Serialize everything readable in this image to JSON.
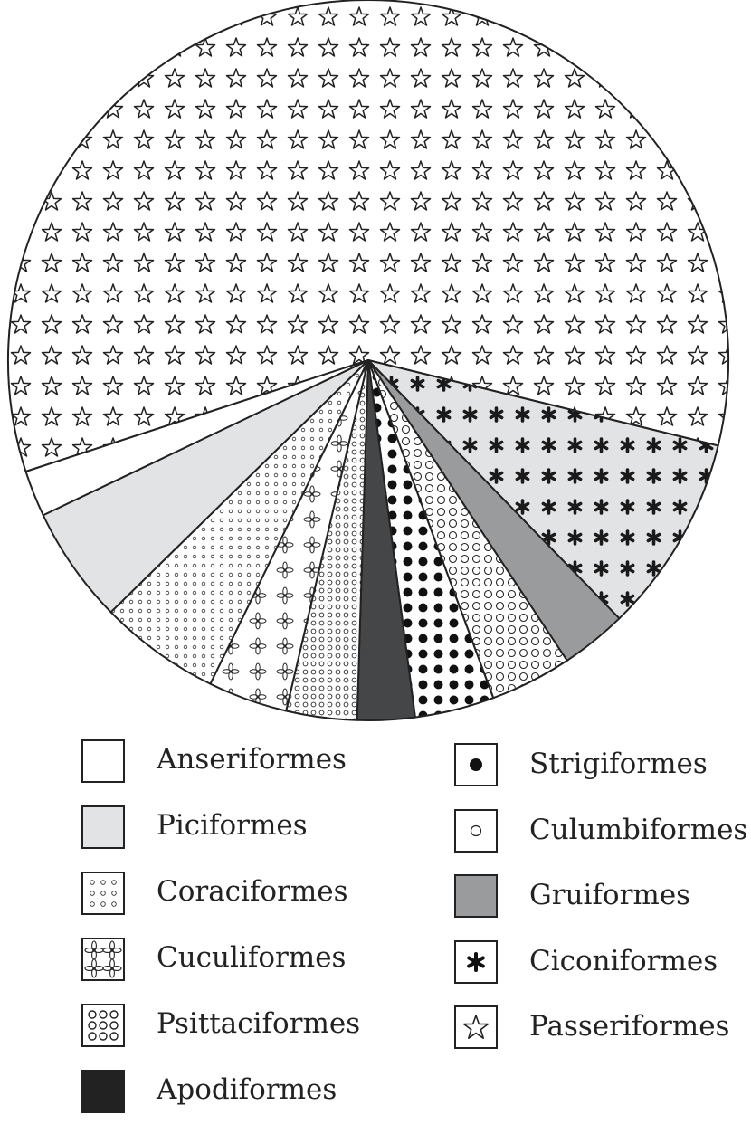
{
  "chart_data": {
    "type": "pie",
    "title": "",
    "slices": [
      {
        "label": "Passeriformes",
        "value": 59.4,
        "pattern": "star",
        "fill": "#ffffff"
      },
      {
        "label": "Ciconiformes",
        "value": 9.0,
        "pattern": "asterisk",
        "fill": "#e2e3e5"
      },
      {
        "label": "Gruiformes",
        "value": 3.0,
        "pattern": "none",
        "fill": "#9a9b9d"
      },
      {
        "label": "Culumbiformes",
        "value": 3.7,
        "pattern": "open-circle",
        "fill": "#ffffff"
      },
      {
        "label": "Strigiformes",
        "value": 3.6,
        "pattern": "dot",
        "fill": "#ffffff"
      },
      {
        "label": "Apodiformes",
        "value": 2.6,
        "pattern": "none",
        "fill": "#454648"
      },
      {
        "label": "Psittaciformes",
        "value": 3.2,
        "pattern": "small-circle",
        "fill": "#ffffff"
      },
      {
        "label": "Cuculiformes",
        "value": 3.6,
        "pattern": "flower",
        "fill": "#ffffff"
      },
      {
        "label": "Coraciformes",
        "value": 5.5,
        "pattern": "tiny-circle",
        "fill": "#ffffff"
      },
      {
        "label": "Piciformes",
        "value": 5.3,
        "pattern": "none",
        "fill": "#e2e3e5"
      },
      {
        "label": "Anseriformes",
        "value": 2.1,
        "pattern": "none",
        "fill": "#ffffff"
      }
    ],
    "legend": {
      "placement": "bottom",
      "left": [
        {
          "label": "Anseriformes",
          "swatch": "plain-white"
        },
        {
          "label": "Piciformes",
          "swatch": "light-gray"
        },
        {
          "label": "Coraciformes",
          "swatch": "tiny-circles"
        },
        {
          "label": "Cuculiformes",
          "swatch": "flowers"
        },
        {
          "label": "Psittaciformes",
          "swatch": "small-circles"
        },
        {
          "label": "Apodiformes",
          "swatch": "black"
        }
      ],
      "right": [
        {
          "label": "Strigiformes",
          "swatch": "dot"
        },
        {
          "label": "Culumbiformes",
          "swatch": "open-circle"
        },
        {
          "label": "Gruiformes",
          "swatch": "gray"
        },
        {
          "label": "Ciconiformes",
          "swatch": "asterisk"
        },
        {
          "label": "Passeriformes",
          "swatch": "star"
        }
      ]
    }
  }
}
